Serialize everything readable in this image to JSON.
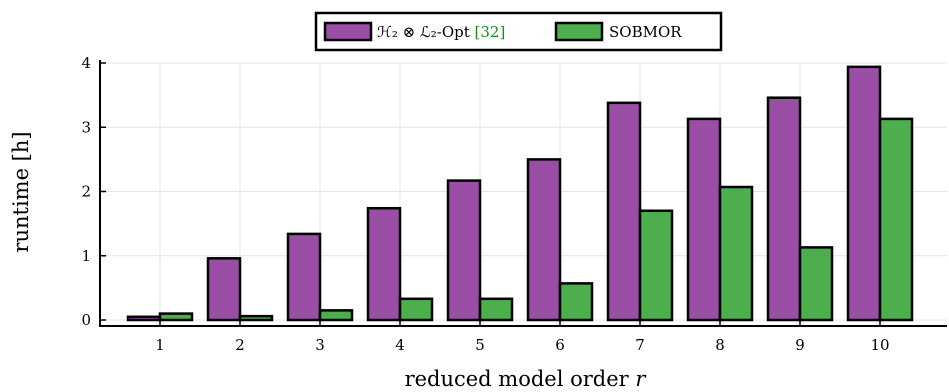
{
  "chart_data": {
    "type": "bar",
    "xlabel": "reduced model order r",
    "ylabel": "runtime [h]",
    "categories": [
      "1",
      "2",
      "3",
      "4",
      "5",
      "6",
      "7",
      "8",
      "9",
      "10"
    ],
    "ylim": [
      0,
      4
    ],
    "yticks": [
      "0",
      "1",
      "2",
      "3",
      "4"
    ],
    "grid": true,
    "legend_position": "top-center",
    "series": [
      {
        "name": "H2 ⊗ L2-Opt [32]",
        "legend_main": "ℋ₂ ⊗ ℒ₂-Opt ",
        "legend_ref": "[32]",
        "color": "#9b4ea6",
        "values": [
          0.05,
          0.96,
          1.34,
          1.74,
          2.17,
          2.5,
          3.38,
          3.13,
          3.46,
          3.94
        ]
      },
      {
        "name": "SOBMOR",
        "legend_main": "SOBMOR",
        "legend_ref": "",
        "color": "#4cae4c",
        "values": [
          0.1,
          0.06,
          0.15,
          0.33,
          0.33,
          0.57,
          1.7,
          2.07,
          1.13,
          3.13
        ]
      }
    ]
  }
}
